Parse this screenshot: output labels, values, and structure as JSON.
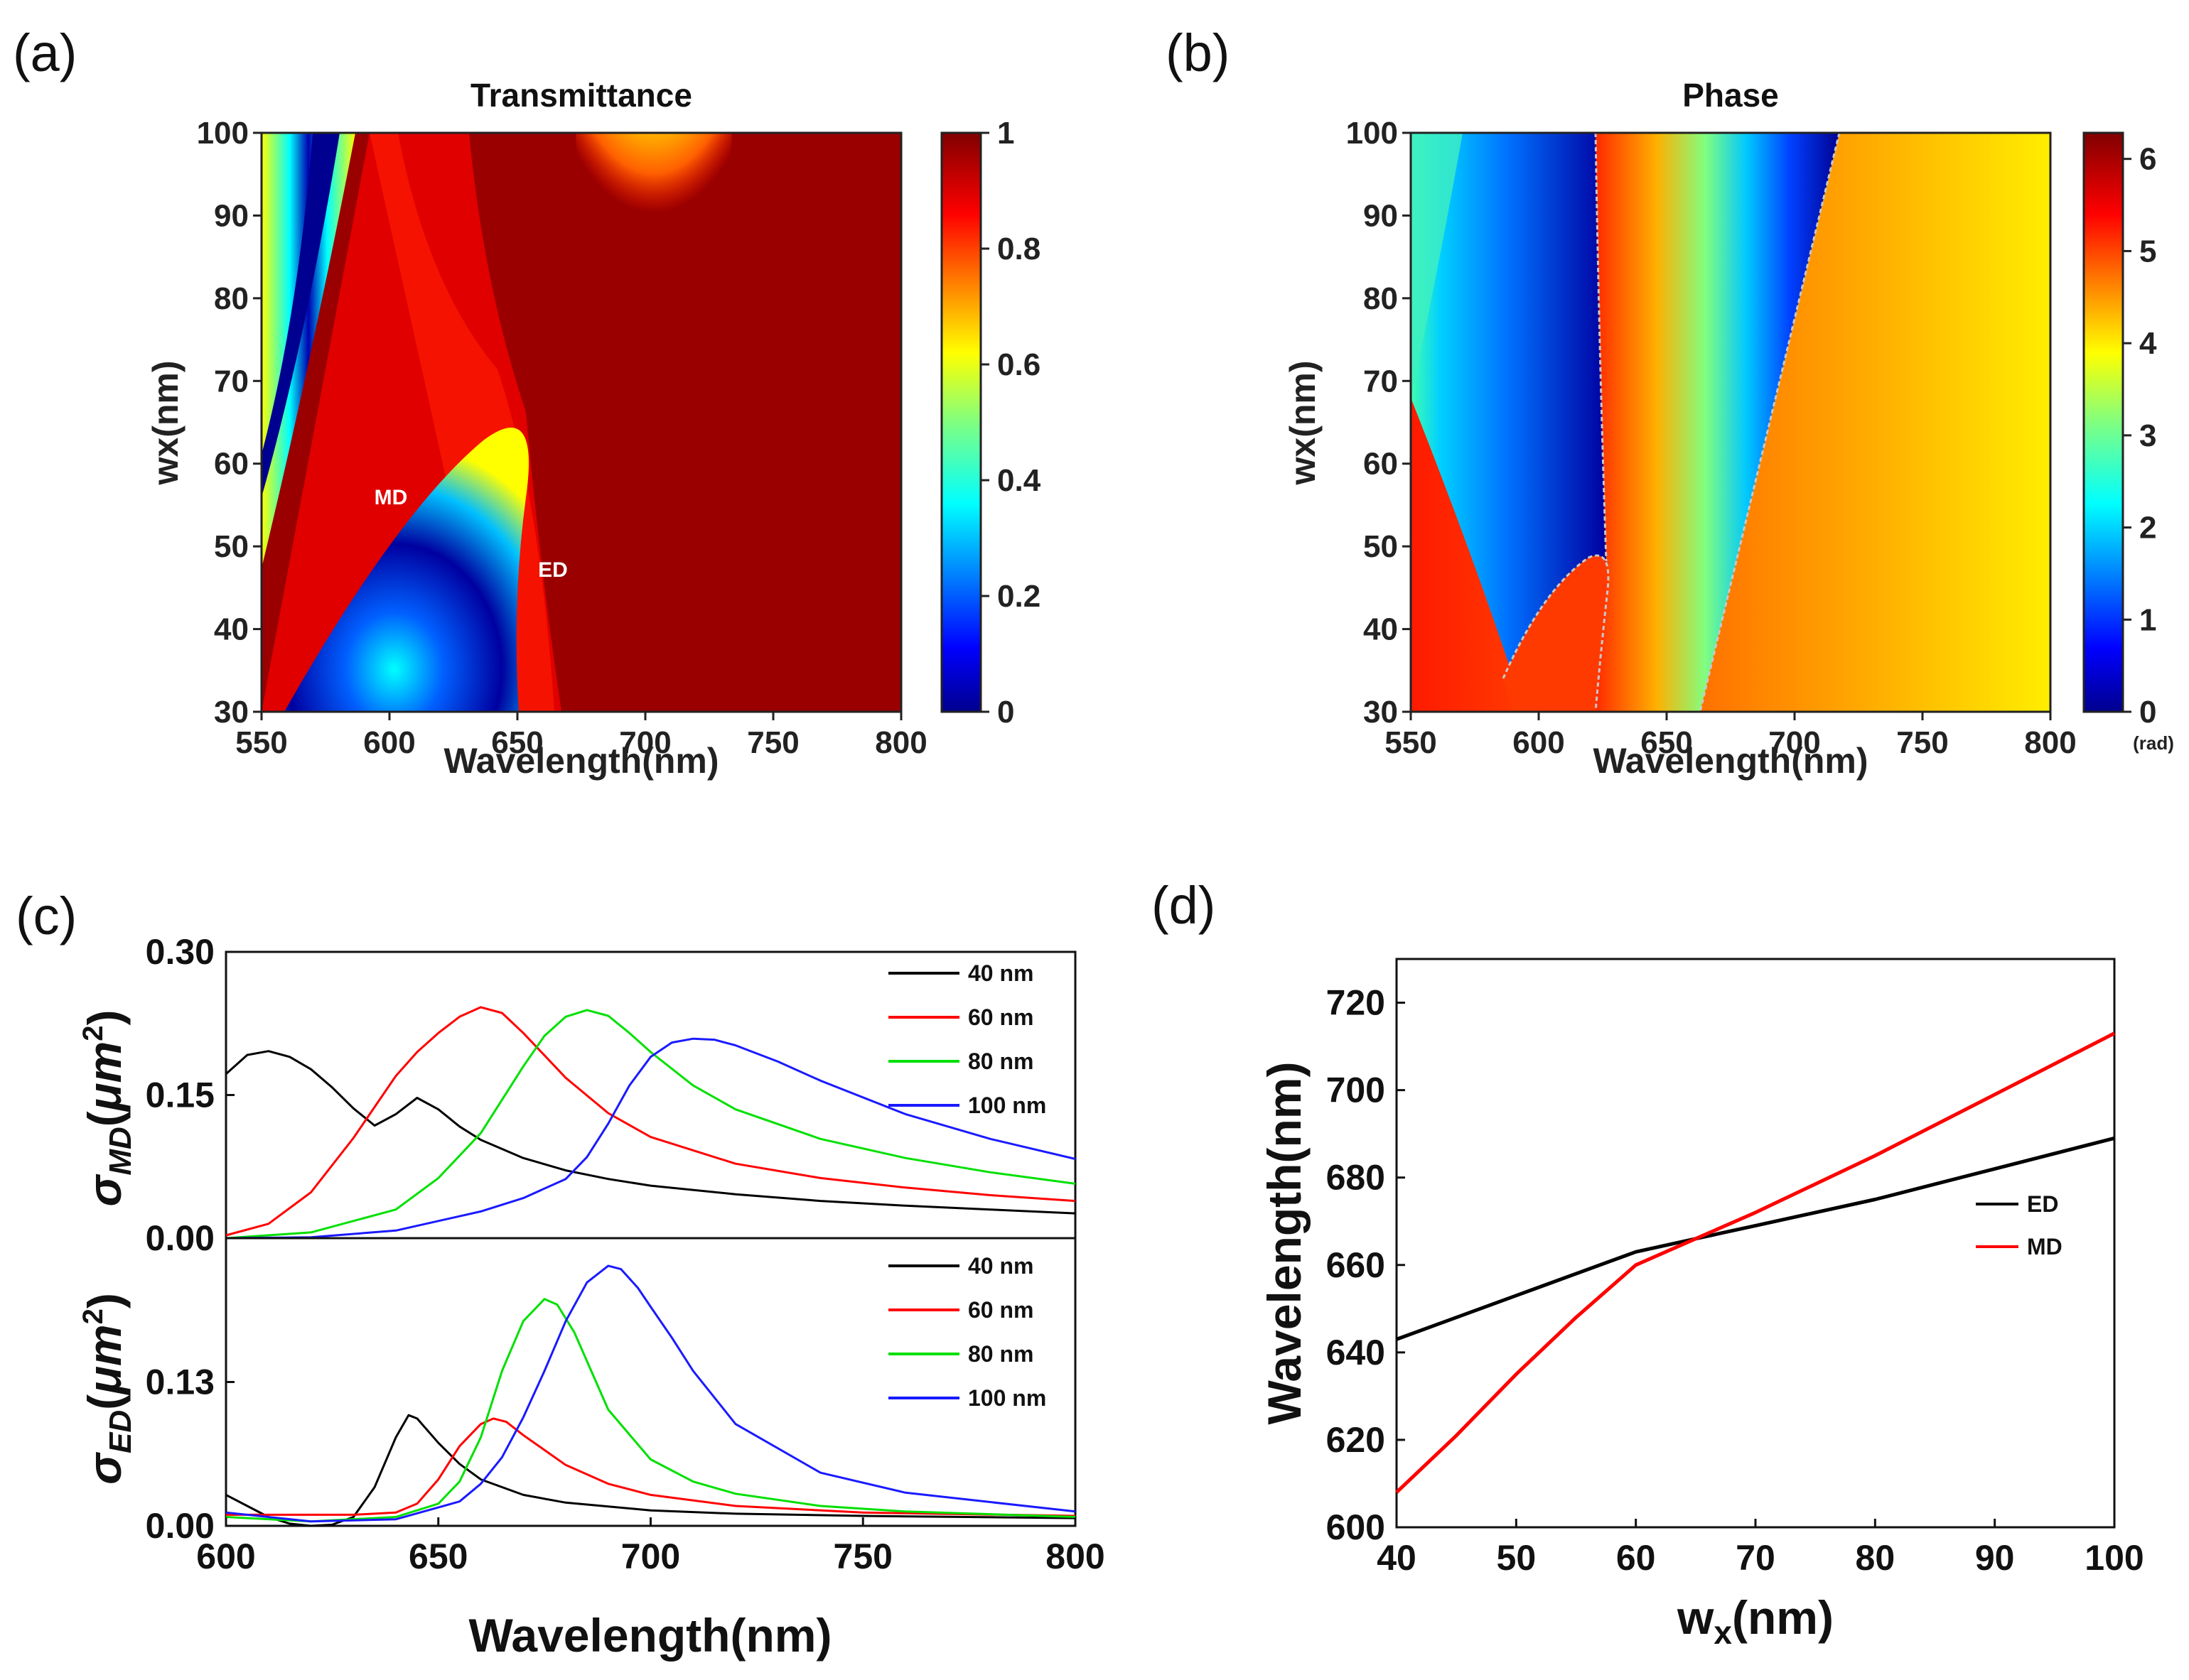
{
  "panels": {
    "a": {
      "label": "(a)"
    },
    "b": {
      "label": "(b)"
    },
    "c": {
      "label": "(c)"
    },
    "d": {
      "label": "(d)"
    }
  },
  "colors": {
    "black": "#000000",
    "red": "#ff0000",
    "green": "#00e000",
    "blue": "#1a1aff",
    "jet_low": "#00008f",
    "jet_high": "#800000"
  },
  "chart_data": [
    {
      "id": "a",
      "type": "heatmap",
      "title": "Transmittance",
      "xlabel": "Wavelength(nm)",
      "ylabel": "wx(nm)",
      "xlim": [
        550,
        800
      ],
      "ylim": [
        30,
        100
      ],
      "xticks": [
        "550",
        "600",
        "650",
        "700",
        "750",
        "800"
      ],
      "yticks": [
        "30",
        "40",
        "50",
        "60",
        "70",
        "80",
        "90",
        "100"
      ],
      "colorbar": {
        "ticks": [
          "0",
          "0.2",
          "0.4",
          "0.6",
          "0.8",
          "1"
        ],
        "range": [
          0,
          1
        ]
      },
      "annotations": [
        {
          "text": "MD",
          "x": 591,
          "y": 55
        },
        {
          "text": "ED",
          "x": 664,
          "y": 47
        }
      ]
    },
    {
      "id": "b",
      "type": "heatmap",
      "title": "Phase",
      "xlabel": "Wavelength(nm)",
      "ylabel": "wx(nm)",
      "xlim": [
        550,
        800
      ],
      "ylim": [
        30,
        100
      ],
      "xticks": [
        "550",
        "600",
        "650",
        "700",
        "750",
        "800"
      ],
      "yticks": [
        "30",
        "40",
        "50",
        "60",
        "70",
        "80",
        "90",
        "100"
      ],
      "colorbar": {
        "ticks": [
          "0",
          "1",
          "2",
          "3",
          "4",
          "5",
          "6"
        ],
        "range": [
          0,
          6.283
        ],
        "unit": "(rad)"
      }
    },
    {
      "id": "c_top",
      "type": "line",
      "ylabel_main": "σ",
      "ylabel_sub": "MD",
      "ylabel_unit_open": "(",
      "ylabel_unit": "μm",
      "ylabel_sup": "2",
      "ylabel_unit_close": ")",
      "xlim": [
        600,
        800
      ],
      "ylim": [
        0,
        0.3
      ],
      "yticks": [
        "0.00",
        "0.15",
        "0.30"
      ],
      "legend": [
        "40   nm",
        "60   nm",
        "80   nm",
        "100 nm"
      ],
      "series": [
        {
          "name": "40 nm",
          "color": "#000000",
          "x": [
            600,
            605,
            610,
            615,
            620,
            625,
            630,
            635,
            640,
            645,
            650,
            655,
            660,
            670,
            680,
            690,
            700,
            720,
            740,
            760,
            780,
            800
          ],
          "y": [
            0.172,
            0.192,
            0.196,
            0.19,
            0.177,
            0.158,
            0.136,
            0.118,
            0.13,
            0.147,
            0.135,
            0.117,
            0.103,
            0.084,
            0.071,
            0.062,
            0.055,
            0.046,
            0.039,
            0.034,
            0.03,
            0.026
          ]
        },
        {
          "name": "60 nm",
          "color": "#ff0000",
          "x": [
            600,
            610,
            620,
            630,
            640,
            645,
            650,
            655,
            660,
            665,
            670,
            680,
            690,
            700,
            720,
            740,
            760,
            780,
            800
          ],
          "y": [
            0.003,
            0.015,
            0.048,
            0.105,
            0.17,
            0.195,
            0.215,
            0.232,
            0.242,
            0.236,
            0.215,
            0.168,
            0.131,
            0.106,
            0.078,
            0.063,
            0.053,
            0.045,
            0.039
          ]
        },
        {
          "name": "80 nm",
          "color": "#00e000",
          "x": [
            600,
            620,
            640,
            650,
            660,
            665,
            670,
            675,
            680,
            685,
            690,
            695,
            700,
            710,
            720,
            740,
            760,
            780,
            800
          ],
          "y": [
            0.0,
            0.006,
            0.03,
            0.063,
            0.11,
            0.145,
            0.18,
            0.212,
            0.232,
            0.239,
            0.233,
            0.215,
            0.195,
            0.16,
            0.135,
            0.104,
            0.084,
            0.069,
            0.057
          ]
        },
        {
          "name": "100 nm",
          "color": "#1a1aff",
          "x": [
            600,
            620,
            640,
            660,
            670,
            680,
            685,
            690,
            695,
            700,
            705,
            710,
            715,
            720,
            730,
            740,
            760,
            780,
            800
          ],
          "y": [
            0.0,
            0.001,
            0.008,
            0.028,
            0.042,
            0.062,
            0.085,
            0.12,
            0.16,
            0.19,
            0.205,
            0.209,
            0.208,
            0.202,
            0.185,
            0.165,
            0.13,
            0.104,
            0.083
          ]
        }
      ]
    },
    {
      "id": "c_bottom",
      "type": "line",
      "ylabel_main": "σ",
      "ylabel_sub": "ED",
      "ylabel_unit_open": "(",
      "ylabel_unit": "μm",
      "ylabel_sup": "2",
      "ylabel_unit_close": ")",
      "xlabel": "Wavelength(nm)",
      "xlim": [
        600,
        800
      ],
      "ylim": [
        0,
        0.26
      ],
      "xticks": [
        "600",
        "650",
        "700",
        "750",
        "800"
      ],
      "yticks": [
        "0.00",
        "0.13"
      ],
      "legend": [
        "40   nm",
        "60   nm",
        "80   nm",
        "100 nm"
      ],
      "series": [
        {
          "name": "40 nm",
          "color": "#000000",
          "x": [
            600,
            605,
            610,
            615,
            620,
            625,
            630,
            635,
            640,
            643,
            645,
            650,
            655,
            660,
            670,
            680,
            700,
            720,
            750,
            800
          ],
          "y": [
            0.028,
            0.018,
            0.008,
            0.002,
            0.0,
            0.001,
            0.008,
            0.035,
            0.08,
            0.1,
            0.097,
            0.075,
            0.056,
            0.042,
            0.028,
            0.021,
            0.014,
            0.011,
            0.009,
            0.007
          ]
        },
        {
          "name": "60 nm",
          "color": "#ff0000",
          "x": [
            600,
            610,
            620,
            630,
            640,
            645,
            650,
            655,
            660,
            663,
            666,
            670,
            680,
            690,
            700,
            720,
            750,
            800
          ],
          "y": [
            0.01,
            0.01,
            0.01,
            0.01,
            0.012,
            0.02,
            0.042,
            0.072,
            0.092,
            0.097,
            0.094,
            0.082,
            0.055,
            0.038,
            0.028,
            0.018,
            0.012,
            0.009
          ]
        },
        {
          "name": "80 nm",
          "color": "#00e000",
          "x": [
            600,
            620,
            640,
            650,
            655,
            660,
            665,
            670,
            675,
            678,
            682,
            686,
            690,
            700,
            710,
            720,
            740,
            760,
            800
          ],
          "y": [
            0.008,
            0.004,
            0.008,
            0.02,
            0.04,
            0.08,
            0.14,
            0.185,
            0.205,
            0.2,
            0.175,
            0.14,
            0.105,
            0.06,
            0.04,
            0.029,
            0.018,
            0.013,
            0.008
          ]
        },
        {
          "name": "100 nm",
          "color": "#1a1aff",
          "x": [
            600,
            620,
            640,
            655,
            660,
            665,
            670,
            675,
            680,
            685,
            690,
            693,
            697,
            700,
            705,
            710,
            720,
            740,
            760,
            800
          ],
          "y": [
            0.012,
            0.004,
            0.006,
            0.022,
            0.038,
            0.062,
            0.098,
            0.14,
            0.185,
            0.22,
            0.235,
            0.232,
            0.215,
            0.198,
            0.17,
            0.14,
            0.092,
            0.048,
            0.03,
            0.013
          ]
        }
      ]
    },
    {
      "id": "d",
      "type": "line",
      "xlabel_main": "w",
      "xlabel_sub": "x",
      "xlabel_rest": "(nm)",
      "ylabel": "Wavelength(nm)",
      "xlim": [
        40,
        100
      ],
      "ylim": [
        600,
        730
      ],
      "xticks": [
        "40",
        "50",
        "60",
        "70",
        "80",
        "90",
        "100"
      ],
      "yticks": [
        "600",
        "620",
        "640",
        "660",
        "680",
        "700",
        "720"
      ],
      "legend": [
        "ED",
        "MD"
      ],
      "series": [
        {
          "name": "ED",
          "color": "#000000",
          "x": [
            40,
            50,
            60,
            65,
            70,
            80,
            90,
            100
          ],
          "y": [
            643,
            653,
            663,
            666,
            669,
            675,
            682,
            689
          ]
        },
        {
          "name": "MD",
          "color": "#ff0000",
          "x": [
            40,
            45,
            50,
            55,
            60,
            65,
            70,
            80,
            90,
            100
          ],
          "y": [
            608,
            621,
            635,
            648,
            660,
            666,
            672,
            685,
            699,
            713
          ]
        }
      ]
    }
  ]
}
